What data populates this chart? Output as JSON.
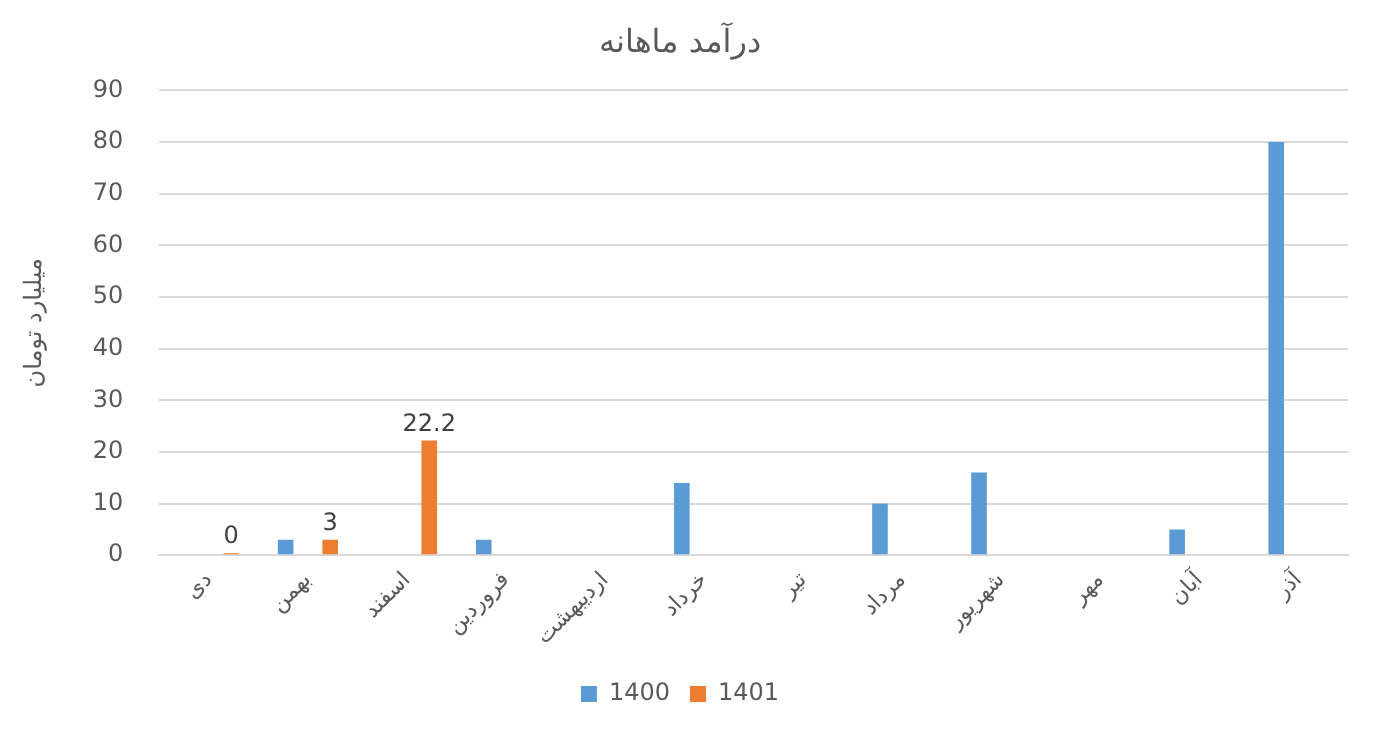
{
  "chart_data": {
    "type": "bar",
    "title": "درآمد ماهانه",
    "ylabel": "میلیارد تومان",
    "categories": [
      "دی",
      "بهمن",
      "اسفند",
      "فروردین",
      "اردیبهشت",
      "خرداد",
      "تیر",
      "مرداد",
      "شهریور",
      "مهر",
      "آبان",
      "آذر"
    ],
    "series": [
      {
        "name": "1400",
        "color": "#5b9bd5",
        "values": [
          null,
          3,
          null,
          3,
          null,
          14,
          null,
          10,
          16,
          null,
          5,
          80
        ]
      },
      {
        "name": "1401",
        "color": "#ed7d31",
        "values": [
          0,
          3,
          22.2,
          null,
          null,
          null,
          null,
          null,
          null,
          null,
          null,
          null
        ],
        "value_labels": [
          "0",
          "3",
          "22.2",
          null,
          null,
          null,
          null,
          null,
          null,
          null,
          null,
          null
        ]
      }
    ],
    "ylim": [
      0,
      90
    ],
    "yticks": [
      0,
      10,
      20,
      30,
      40,
      50,
      60,
      70,
      80,
      90
    ],
    "grid": "y",
    "legend": "bottom"
  }
}
